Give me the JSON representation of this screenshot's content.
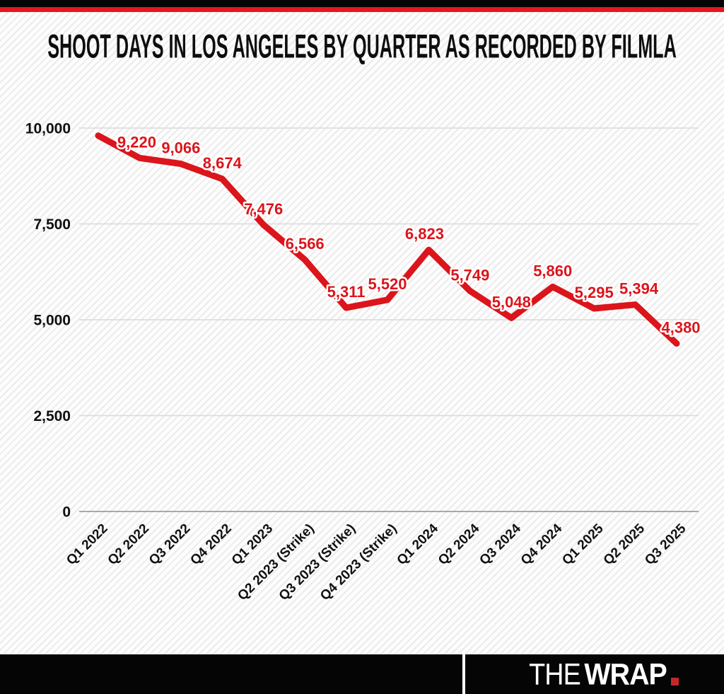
{
  "header": {
    "title": "SHOOT DAYS IN LOS ANGELES BY QUARTER AS RECORDED BY FILMLA"
  },
  "colors": {
    "accent_red": "#dc141b",
    "top_stripe_red": "#e8161d",
    "grid_line": "#d9d9d9",
    "zero_line": "#8f8f8f",
    "axis_text": "#101010",
    "bar_black": "#050505",
    "logo_dot_red": "#c5282c",
    "label_outline": "#ffffff"
  },
  "chart_data": {
    "type": "line",
    "title": "SHOOT DAYS IN LOS ANGELES BY QUARTER AS RECORDED BY FILMLA",
    "categories": [
      "Q1 2022",
      "Q2 2022",
      "Q3 2022",
      "Q4 2022",
      "Q1 2023",
      "Q2 2023 (Strike)",
      "Q3 2023 (Strike)",
      "Q4 2023 (Strike)",
      "Q1 2024",
      "Q2 2024",
      "Q3 2024",
      "Q4 2024",
      "Q1 2025",
      "Q2 2025",
      "Q3 2025"
    ],
    "values": [
      9800,
      9220,
      9066,
      8674,
      7476,
      6566,
      5311,
      5520,
      6823,
      5749,
      5048,
      5860,
      5295,
      5394,
      4380
    ],
    "point_labels": [
      "",
      "9,220",
      "9,066",
      "8,674",
      "7,476",
      "6,566",
      "5,311",
      "5,520",
      "6,823",
      "5,749",
      "5,048",
      "5,860",
      "5,295",
      "5,394",
      "4,380"
    ],
    "ylim": [
      0,
      10000
    ],
    "yticks": [
      0,
      2500,
      5000,
      7500,
      10000
    ],
    "ytick_labels": [
      "0",
      "2,500",
      "5,000",
      "7,500",
      "10,000"
    ],
    "xlabel": "",
    "ylabel": "",
    "grid": true,
    "legend": "none",
    "line_color": "#dc141b",
    "x_tick_rotation_deg": -45
  },
  "branding": {
    "logo_the": "THE",
    "logo_wrap": "WRAP"
  }
}
